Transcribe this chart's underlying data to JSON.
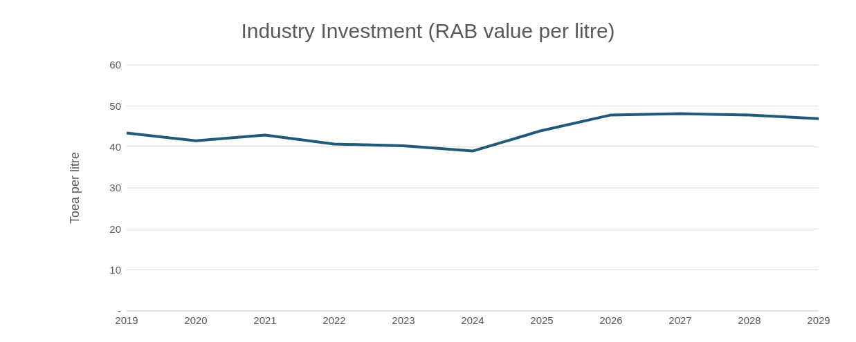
{
  "chart_data": {
    "type": "line",
    "title": "Industry Investment (RAB value per litre)",
    "ylabel": "Toea per litre",
    "categories": [
      "2019",
      "2020",
      "2021",
      "2022",
      "2023",
      "2024",
      "2025",
      "2026",
      "2027",
      "2028",
      "2029"
    ],
    "series": [
      {
        "color": "#1f5a78",
        "values": [
          43.4,
          41.5,
          42.9,
          40.7,
          40.3,
          39.0,
          44.0,
          47.8,
          48.1,
          47.8,
          46.9
        ]
      }
    ],
    "ylim": [
      0,
      60
    ],
    "yticks": [
      {
        "value": 0,
        "label": "-"
      },
      10,
      20,
      30,
      40,
      50,
      60
    ],
    "grid": "y",
    "legend": false,
    "marker": "none",
    "line_style": "solid"
  }
}
